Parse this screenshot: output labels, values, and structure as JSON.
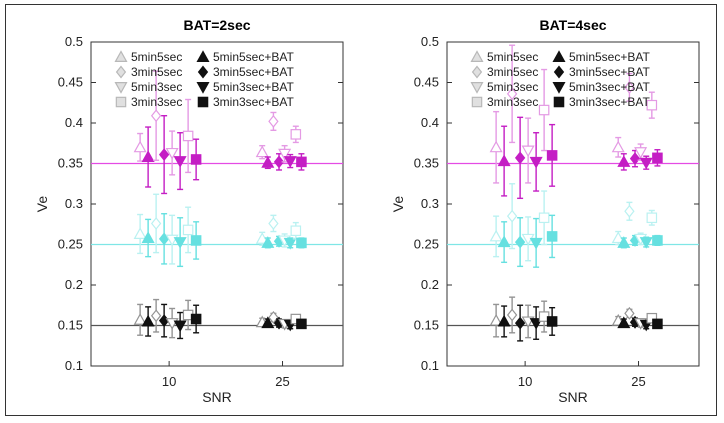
{
  "chart_data": [
    {
      "type": "scatter",
      "title": "BAT=2sec",
      "xlabel": "SNR",
      "ylabel": "Ve",
      "categories": [
        "10",
        "25"
      ],
      "ylim": [
        0.1,
        0.5
      ],
      "yticks": [
        "0.1",
        "0.15",
        "0.2",
        "0.25",
        "0.3",
        "0.35",
        "0.4",
        "0.45",
        "0.5"
      ],
      "reference_lines": [
        {
          "value": 0.35,
          "color": "#e44be4"
        },
        {
          "value": 0.25,
          "color": "#7fe6e6"
        },
        {
          "value": 0.15,
          "color": "#555555"
        }
      ],
      "legend": [
        "5min5sec",
        "3min5sec",
        "5min3sec",
        "3min3sec",
        "5min5sec+BAT",
        "3min5sec+BAT",
        "5min3sec+BAT",
        "3min3sec+BAT"
      ],
      "groups": [
        {
          "name": "0.35",
          "color": "#c41ec4",
          "series": [
            {
              "name": "5min5sec",
              "values": [
                {
                  "mean": 0.37,
                  "err": 0.017
                },
                {
                  "mean": 0.364,
                  "err": 0.008
                }
              ]
            },
            {
              "name": "5min5sec+BAT",
              "values": [
                {
                  "mean": 0.358,
                  "err": 0.037
                },
                {
                  "mean": 0.351,
                  "err": 0.007
                }
              ]
            },
            {
              "name": "3min5sec",
              "values": [
                {
                  "mean": 0.409,
                  "err": 0.055
                },
                {
                  "mean": 0.402,
                  "err": 0.011
                }
              ]
            },
            {
              "name": "3min5sec+BAT",
              "values": [
                {
                  "mean": 0.361,
                  "err": 0.048
                },
                {
                  "mean": 0.352,
                  "err": 0.01
                }
              ]
            },
            {
              "name": "5min3sec",
              "values": [
                {
                  "mean": 0.363,
                  "err": 0.027
                },
                {
                  "mean": 0.362,
                  "err": 0.01
                }
              ]
            },
            {
              "name": "5min3sec+BAT",
              "values": [
                {
                  "mean": 0.353,
                  "err": 0.035
                },
                {
                  "mean": 0.353,
                  "err": 0.008
                }
              ]
            },
            {
              "name": "3min3sec",
              "values": [
                {
                  "mean": 0.384,
                  "err": 0.045
                },
                {
                  "mean": 0.386,
                  "err": 0.01
                }
              ]
            },
            {
              "name": "3min3sec+BAT",
              "values": [
                {
                  "mean": 0.355,
                  "err": 0.025
                },
                {
                  "mean": 0.352,
                  "err": 0.01
                }
              ]
            }
          ]
        },
        {
          "name": "0.25",
          "color": "#66e0e0",
          "series": [
            {
              "name": "5min5sec",
              "values": [
                {
                  "mean": 0.263,
                  "err": 0.024
                },
                {
                  "mean": 0.257,
                  "err": 0.008
                }
              ]
            },
            {
              "name": "5min5sec+BAT",
              "values": [
                {
                  "mean": 0.258,
                  "err": 0.023
                },
                {
                  "mean": 0.252,
                  "err": 0.006
                }
              ]
            },
            {
              "name": "3min5sec",
              "values": [
                {
                  "mean": 0.276,
                  "err": 0.036
                },
                {
                  "mean": 0.276,
                  "err": 0.01
                }
              ]
            },
            {
              "name": "3min5sec+BAT",
              "values": [
                {
                  "mean": 0.257,
                  "err": 0.031
                },
                {
                  "mean": 0.254,
                  "err": 0.006
                }
              ]
            },
            {
              "name": "5min3sec",
              "values": [
                {
                  "mean": 0.256,
                  "err": 0.03
                },
                {
                  "mean": 0.255,
                  "err": 0.008
                }
              ]
            },
            {
              "name": "5min3sec+BAT",
              "values": [
                {
                  "mean": 0.253,
                  "err": 0.03
                },
                {
                  "mean": 0.252,
                  "err": 0.006
                }
              ]
            },
            {
              "name": "3min3sec",
              "values": [
                {
                  "mean": 0.268,
                  "err": 0.028
                },
                {
                  "mean": 0.267,
                  "err": 0.01
                }
              ]
            },
            {
              "name": "3min3sec+BAT",
              "values": [
                {
                  "mean": 0.255,
                  "err": 0.023
                },
                {
                  "mean": 0.252,
                  "err": 0.006
                }
              ]
            }
          ]
        },
        {
          "name": "0.15",
          "color": "#111111",
          "series": [
            {
              "name": "5min5sec",
              "values": [
                {
                  "mean": 0.157,
                  "err": 0.019
                },
                {
                  "mean": 0.154,
                  "err": 0.005
                }
              ]
            },
            {
              "name": "5min5sec+BAT",
              "values": [
                {
                  "mean": 0.155,
                  "err": 0.018
                },
                {
                  "mean": 0.153,
                  "err": 0.005
                }
              ]
            },
            {
              "name": "3min5sec",
              "values": [
                {
                  "mean": 0.162,
                  "err": 0.02
                },
                {
                  "mean": 0.16,
                  "err": 0.005
                }
              ]
            },
            {
              "name": "3min5sec+BAT",
              "values": [
                {
                  "mean": 0.156,
                  "err": 0.02
                },
                {
                  "mean": 0.153,
                  "err": 0.005
                }
              ]
            },
            {
              "name": "5min3sec",
              "values": [
                {
                  "mean": 0.153,
                  "err": 0.018
                },
                {
                  "mean": 0.152,
                  "err": 0.005
                }
              ]
            },
            {
              "name": "5min3sec+BAT",
              "values": [
                {
                  "mean": 0.15,
                  "err": 0.016
                },
                {
                  "mean": 0.151,
                  "err": 0.005
                }
              ]
            },
            {
              "name": "3min3sec",
              "values": [
                {
                  "mean": 0.163,
                  "err": 0.018
                },
                {
                  "mean": 0.158,
                  "err": 0.005
                }
              ]
            },
            {
              "name": "3min3sec+BAT",
              "values": [
                {
                  "mean": 0.158,
                  "err": 0.017
                },
                {
                  "mean": 0.152,
                  "err": 0.005
                }
              ]
            }
          ]
        }
      ]
    },
    {
      "type": "scatter",
      "title": "BAT=4sec",
      "xlabel": "SNR",
      "ylabel": "Ve",
      "categories": [
        "10",
        "25"
      ],
      "ylim": [
        0.1,
        0.5
      ],
      "yticks": [
        "0.1",
        "0.15",
        "0.2",
        "0.25",
        "0.3",
        "0.35",
        "0.4",
        "0.45",
        "0.5"
      ],
      "reference_lines": [
        {
          "value": 0.35,
          "color": "#e44be4"
        },
        {
          "value": 0.25,
          "color": "#7fe6e6"
        },
        {
          "value": 0.15,
          "color": "#555555"
        }
      ],
      "legend": [
        "5min5sec",
        "3min5sec",
        "5min3sec",
        "3min3sec",
        "5min5sec+BAT",
        "3min5sec+BAT",
        "5min3sec+BAT",
        "3min3sec+BAT"
      ],
      "groups": [
        {
          "name": "0.35",
          "color": "#c41ec4",
          "series": [
            {
              "name": "5min5sec",
              "values": [
                {
                  "mean": 0.37,
                  "err": 0.044
                },
                {
                  "mean": 0.37,
                  "err": 0.012
                }
              ]
            },
            {
              "name": "5min5sec+BAT",
              "values": [
                {
                  "mean": 0.353,
                  "err": 0.043
                },
                {
                  "mean": 0.352,
                  "err": 0.01
                }
              ]
            },
            {
              "name": "3min5sec",
              "values": [
                {
                  "mean": 0.436,
                  "err": 0.06
                },
                {
                  "mean": 0.444,
                  "err": 0.017
                }
              ]
            },
            {
              "name": "3min5sec+BAT",
              "values": [
                {
                  "mean": 0.357,
                  "err": 0.05
                },
                {
                  "mean": 0.356,
                  "err": 0.01
                }
              ]
            },
            {
              "name": "5min3sec",
              "values": [
                {
                  "mean": 0.366,
                  "err": 0.04
                },
                {
                  "mean": 0.364,
                  "err": 0.01
                }
              ]
            },
            {
              "name": "5min3sec+BAT",
              "values": [
                {
                  "mean": 0.352,
                  "err": 0.036
                },
                {
                  "mean": 0.351,
                  "err": 0.008
                }
              ]
            },
            {
              "name": "3min3sec",
              "values": [
                {
                  "mean": 0.416,
                  "err": 0.05
                },
                {
                  "mean": 0.422,
                  "err": 0.016
                }
              ]
            },
            {
              "name": "3min3sec+BAT",
              "values": [
                {
                  "mean": 0.36,
                  "err": 0.038
                },
                {
                  "mean": 0.357,
                  "err": 0.01
                }
              ]
            }
          ]
        },
        {
          "name": "0.25",
          "color": "#66e0e0",
          "series": [
            {
              "name": "5min5sec",
              "values": [
                {
                  "mean": 0.26,
                  "err": 0.025
                },
                {
                  "mean": 0.258,
                  "err": 0.008
                }
              ]
            },
            {
              "name": "5min5sec+BAT",
              "values": [
                {
                  "mean": 0.253,
                  "err": 0.025
                },
                {
                  "mean": 0.252,
                  "err": 0.006
                }
              ]
            },
            {
              "name": "3min5sec",
              "values": [
                {
                  "mean": 0.285,
                  "err": 0.04
                },
                {
                  "mean": 0.291,
                  "err": 0.011
                }
              ]
            },
            {
              "name": "3min5sec+BAT",
              "values": [
                {
                  "mean": 0.253,
                  "err": 0.03
                },
                {
                  "mean": 0.255,
                  "err": 0.006
                }
              ]
            },
            {
              "name": "5min3sec",
              "values": [
                {
                  "mean": 0.257,
                  "err": 0.027
                },
                {
                  "mean": 0.257,
                  "err": 0.007
                }
              ]
            },
            {
              "name": "5min3sec+BAT",
              "values": [
                {
                  "mean": 0.252,
                  "err": 0.03
                },
                {
                  "mean": 0.253,
                  "err": 0.006
                }
              ]
            },
            {
              "name": "3min3sec",
              "values": [
                {
                  "mean": 0.283,
                  "err": 0.033
                },
                {
                  "mean": 0.283,
                  "err": 0.009
                }
              ]
            },
            {
              "name": "3min3sec+BAT",
              "values": [
                {
                  "mean": 0.26,
                  "err": 0.026
                },
                {
                  "mean": 0.255,
                  "err": 0.006
                }
              ]
            }
          ]
        },
        {
          "name": "0.15",
          "color": "#111111",
          "series": [
            {
              "name": "5min5sec",
              "values": [
                {
                  "mean": 0.156,
                  "err": 0.02
                },
                {
                  "mean": 0.156,
                  "err": 0.005
                }
              ]
            },
            {
              "name": "5min5sec+BAT",
              "values": [
                {
                  "mean": 0.155,
                  "err": 0.019
                },
                {
                  "mean": 0.153,
                  "err": 0.005
                }
              ]
            },
            {
              "name": "3min5sec",
              "values": [
                {
                  "mean": 0.163,
                  "err": 0.022
                },
                {
                  "mean": 0.165,
                  "err": 0.005
                }
              ]
            },
            {
              "name": "3min5sec+BAT",
              "values": [
                {
                  "mean": 0.153,
                  "err": 0.022
                },
                {
                  "mean": 0.154,
                  "err": 0.005
                }
              ]
            },
            {
              "name": "5min3sec",
              "values": [
                {
                  "mean": 0.155,
                  "err": 0.02
                },
                {
                  "mean": 0.153,
                  "err": 0.005
                }
              ]
            },
            {
              "name": "5min3sec+BAT",
              "values": [
                {
                  "mean": 0.153,
                  "err": 0.02
                },
                {
                  "mean": 0.151,
                  "err": 0.005
                }
              ]
            },
            {
              "name": "3min3sec",
              "values": [
                {
                  "mean": 0.161,
                  "err": 0.019
                },
                {
                  "mean": 0.159,
                  "err": 0.005
                }
              ]
            },
            {
              "name": "3min3sec+BAT",
              "values": [
                {
                  "mean": 0.155,
                  "err": 0.017
                },
                {
                  "mean": 0.152,
                  "err": 0.005
                }
              ]
            }
          ]
        }
      ]
    }
  ]
}
